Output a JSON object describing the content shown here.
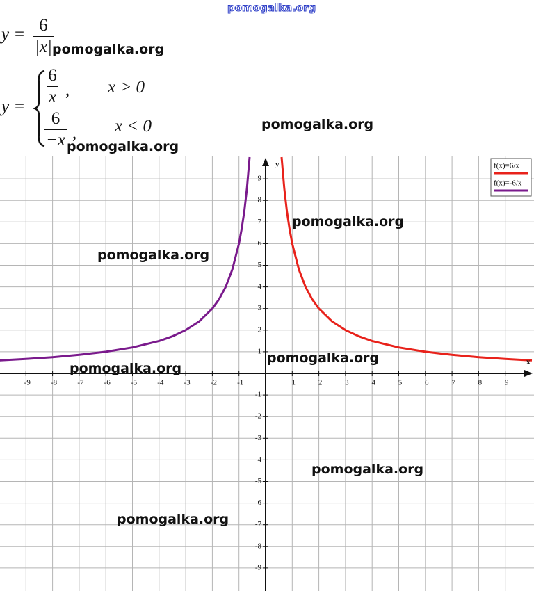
{
  "watermarks": [
    "pomogalka.org",
    "pomogalka.org",
    "pomogalka.org",
    "pomogalka.org",
    "pomogalka.org",
    "pomogalka.org",
    "pomogalka.org",
    "pomogalka.org",
    "pomogalka.org",
    "pomogalka.org"
  ],
  "formula": {
    "lhs": "y =",
    "num": "6",
    "den": "|x|",
    "lhs_2": "y =",
    "separator": ",",
    "pieces": [
      {
        "num": "6",
        "den": "x",
        "condition": "x > 0"
      },
      {
        "num": "6",
        "den": "−x",
        "condition": "x < 0"
      }
    ]
  },
  "chart_data": {
    "type": "line",
    "x_label": "x",
    "y_label": "y",
    "xlim": [
      -10,
      10
    ],
    "ylim": [
      -10,
      10
    ],
    "xticks": [
      -9,
      -8,
      -7,
      -6,
      -5,
      -4,
      -3,
      -2,
      -1,
      1,
      2,
      3,
      4,
      5,
      6,
      7,
      8,
      9
    ],
    "yticks": [
      -9,
      -8,
      -7,
      -6,
      -5,
      -4,
      -3,
      -2,
      -1,
      1,
      2,
      3,
      4,
      5,
      6,
      7,
      8,
      9
    ],
    "grid": true,
    "legend": "top-right",
    "series": [
      {
        "name": "f(x)=6/x",
        "color": "#e8221b",
        "x": [
          0.6,
          0.7,
          0.8,
          0.9,
          1,
          1.25,
          1.5,
          1.75,
          2,
          2.5,
          3,
          3.5,
          4,
          5,
          6,
          7,
          8,
          9,
          10
        ],
        "values": [
          10,
          8.571,
          7.5,
          6.667,
          6,
          4.8,
          4,
          3.429,
          3,
          2.4,
          2,
          1.714,
          1.5,
          1.2,
          1,
          0.857,
          0.75,
          0.667,
          0.6
        ]
      },
      {
        "name": "f(x)=-6/x",
        "color": "#7a1a8c",
        "x": [
          -10,
          -9,
          -8,
          -7,
          -6,
          -5,
          -4,
          -3.5,
          -3,
          -2.5,
          -2,
          -1.75,
          -1.5,
          -1.25,
          -1,
          -0.9,
          -0.8,
          -0.7,
          -0.6
        ],
        "values": [
          0.6,
          0.667,
          0.75,
          0.857,
          1,
          1.2,
          1.5,
          1.714,
          2,
          2.4,
          3,
          3.429,
          4,
          4.8,
          6,
          6.667,
          7.5,
          8.571,
          10
        ]
      }
    ]
  }
}
